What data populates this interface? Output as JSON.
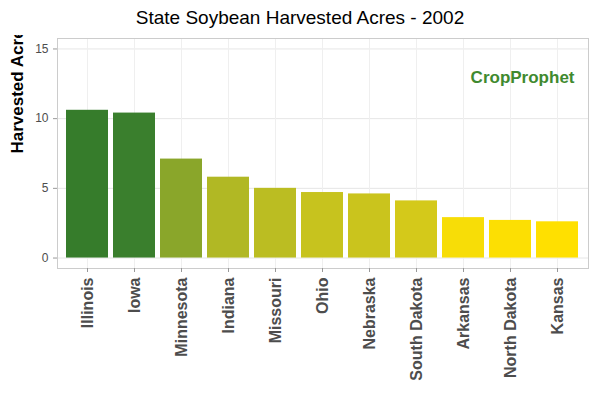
{
  "chart_data": {
    "type": "bar",
    "title": "State Soybean Harvested Acres - 2002",
    "y_label": "Harvested Acres (M Acres)",
    "categories": [
      "Illinois",
      "Iowa",
      "Minnesota",
      "Indiana",
      "Missouri",
      "Ohio",
      "Nebraska",
      "South Dakota",
      "Arkansas",
      "North Dakota",
      "Kansas"
    ],
    "values": [
      10.6,
      10.4,
      7.1,
      5.8,
      5.0,
      4.7,
      4.6,
      4.1,
      2.9,
      2.7,
      2.6
    ],
    "colors": [
      "#367c2b",
      "#3a7f2d",
      "#8aa62a",
      "#b1b824",
      "#bbbd22",
      "#c7c31e",
      "#cac41d",
      "#d4c91a",
      "#f7dd07",
      "#fcdf03",
      "#ffe000"
    ],
    "ylim": [
      -0.75,
      15.75
    ],
    "yticks": [
      0,
      5,
      10,
      15
    ],
    "grid": true,
    "annotations": [
      "CropProphet"
    ]
  }
}
